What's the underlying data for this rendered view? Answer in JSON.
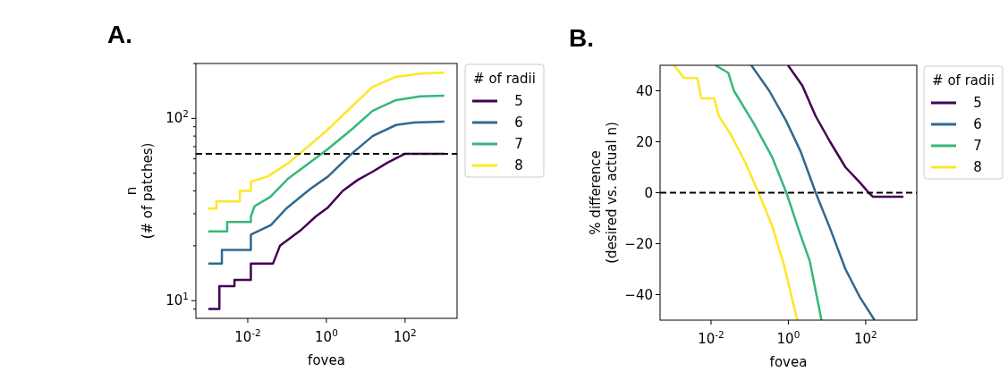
{
  "chart_data": [
    {
      "type": "line",
      "title": "A.",
      "xlabel": "fovea",
      "ylabel": "n\n(# of patches)",
      "legend_title": "# of radii",
      "legend": "right",
      "log": "xy",
      "grid": false,
      "xlim": [
        0.00048,
        2100
      ],
      "xticks": [
        {
          "value": 0.01,
          "label": "10$^{-2}$"
        },
        {
          "value": 1,
          "label": "10$^{0}$"
        },
        {
          "value": 100,
          "label": "10$^{2}$"
        }
      ],
      "ylim": [
        8,
        200
      ],
      "yticks": [
        {
          "value": 9,
          "label": null
        },
        {
          "value": 10,
          "label": "10$^{1}$"
        },
        {
          "value": 20,
          "label": null
        },
        {
          "value": 30,
          "label": null
        },
        {
          "value": 40,
          "label": null
        },
        {
          "value": 50,
          "label": null
        },
        {
          "value": 60,
          "label": null
        },
        {
          "value": 70,
          "label": null
        },
        {
          "value": 80,
          "label": null
        },
        {
          "value": 90,
          "label": null
        },
        {
          "value": 100,
          "label": "10$^{2}$"
        },
        {
          "value": 200,
          "label": null
        }
      ],
      "ref_lines": [
        {
          "axis": "y",
          "value": 64,
          "color": "#000000",
          "line_style": "dashed"
        }
      ],
      "series": [
        {
          "name": "5",
          "color": "#440154",
          "x": [
            0.001,
            0.0019,
            0.0019,
            0.0046,
            0.0046,
            0.012,
            0.012,
            0.044,
            0.066,
            0.23,
            0.54,
            1.1,
            2.6,
            6.3,
            15,
            35,
            100,
            1000
          ],
          "values": [
            9,
            9,
            12,
            12,
            13,
            13,
            16,
            16,
            20,
            24.5,
            29,
            32.5,
            40,
            46,
            51,
            57,
            64,
            64
          ]
        },
        {
          "name": "6",
          "color": "#31688e",
          "x": [
            0.001,
            0.0022,
            0.0022,
            0.012,
            0.012,
            0.039,
            0.095,
            0.39,
            1.1,
            4.4,
            15,
            59,
            170,
            1000
          ],
          "values": [
            16,
            16,
            19,
            19,
            23,
            26,
            32,
            41,
            48,
            64,
            80,
            92,
            95,
            96
          ]
        },
        {
          "name": "7",
          "color": "#35b779",
          "x": [
            0.001,
            0.003,
            0.003,
            0.012,
            0.012,
            0.015,
            0.037,
            0.11,
            0.46,
            1.1,
            4.4,
            15,
            59,
            245,
            1000
          ],
          "values": [
            24,
            24,
            27,
            27,
            29,
            33,
            37,
            47,
            59,
            68,
            87,
            110,
            126,
            132,
            133
          ]
        },
        {
          "name": "8",
          "color": "#fde725",
          "x": [
            0.001,
            0.0016,
            0.0016,
            0.0063,
            0.0063,
            0.012,
            0.012,
            0.032,
            0.11,
            0.46,
            1.1,
            4.4,
            15,
            59,
            245,
            1000
          ],
          "values": [
            32,
            32,
            35,
            35,
            40,
            40,
            45,
            48,
            57,
            74,
            87,
            116,
            149,
            169,
            176,
            178
          ]
        }
      ]
    },
    {
      "type": "line",
      "title": "B.",
      "xlabel": "fovea",
      "ylabel": "% difference\n(desired vs. actual n)",
      "legend_title": "# of radii",
      "legend": "right",
      "log": "x",
      "grid": false,
      "xlim": [
        0.00048,
        2100
      ],
      "xticks": [
        {
          "value": 0.01,
          "label": "10$^{-2}$"
        },
        {
          "value": 1,
          "label": "10$^{0}$"
        },
        {
          "value": 100,
          "label": "10$^{2}$"
        }
      ],
      "ylim": [
        -50,
        50
      ],
      "yticks": [
        {
          "value": -40,
          "label": "−40"
        },
        {
          "value": -20,
          "label": "−20"
        },
        0,
        20,
        40
      ],
      "ref_lines": [
        {
          "axis": "y",
          "value": 0,
          "color": "#000000",
          "line_style": "dashed"
        }
      ],
      "series": [
        {
          "name": "5",
          "color": "#440154",
          "x": [
            0.98,
            2.3,
            5.1,
            12,
            30,
            71,
            120,
            155,
            950
          ],
          "values": [
            50,
            42,
            30,
            20,
            10,
            4,
            0,
            -1.6,
            -1.6
          ]
        },
        {
          "name": "6",
          "color": "#31688e",
          "x": [
            0.11,
            0.32,
            0.89,
            2.1,
            5.1,
            12,
            30,
            71,
            170
          ],
          "values": [
            50,
            40,
            28,
            16,
            0,
            -14,
            -30,
            -41,
            -50
          ]
        },
        {
          "name": "7",
          "color": "#35b779",
          "x": [
            0.013,
            0.028,
            0.039,
            0.13,
            0.38,
            0.89,
            1.8,
            3.6,
            7.2
          ],
          "values": [
            50,
            47,
            40,
            27,
            14,
            0,
            -14,
            -27,
            -50
          ]
        },
        {
          "name": "8",
          "color": "#fde725",
          "x": [
            0.0011,
            0.002,
            0.0044,
            0.0056,
            0.012,
            0.016,
            0.032,
            0.076,
            0.17,
            0.38,
            0.76,
            1.7
          ],
          "values": [
            50,
            45,
            45,
            37,
            37,
            30,
            23,
            12,
            0,
            -13,
            -28,
            -50
          ]
        }
      ]
    }
  ]
}
